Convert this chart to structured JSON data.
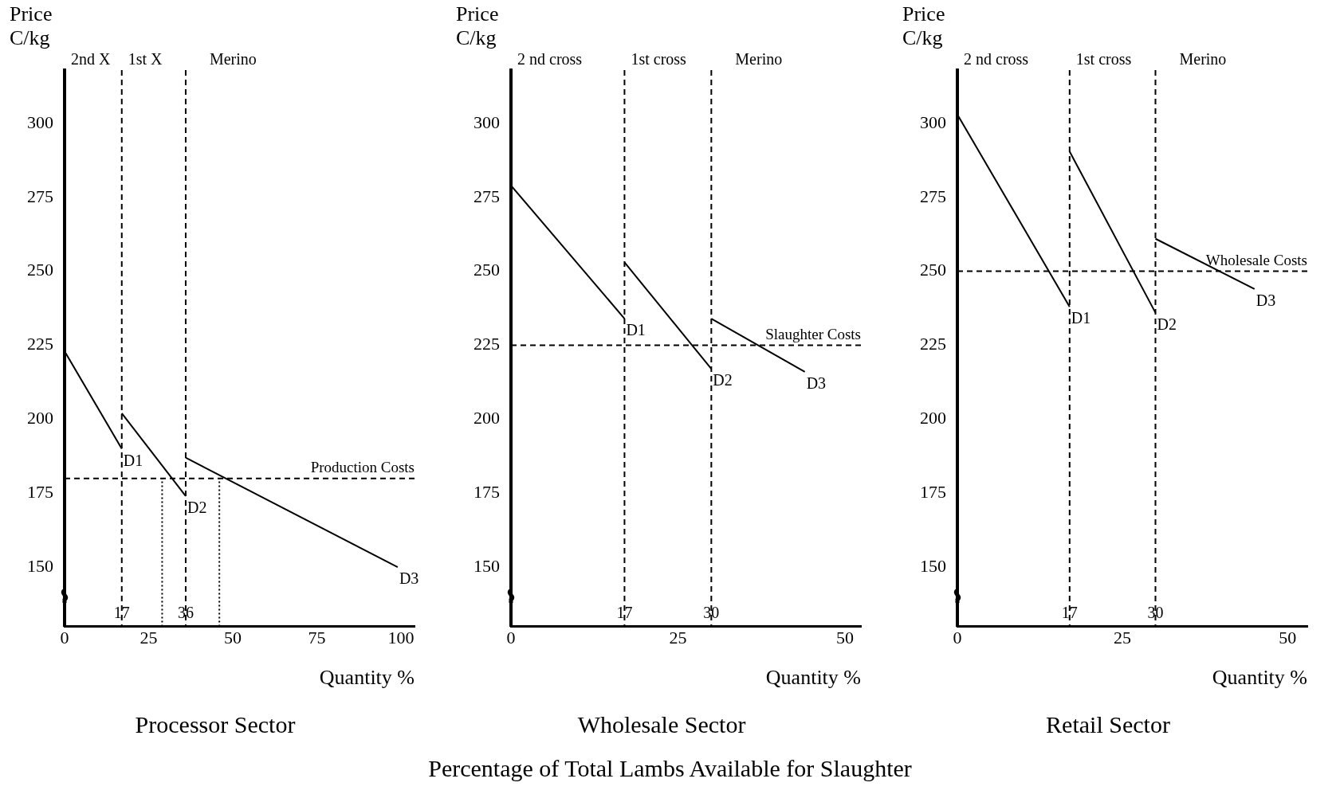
{
  "chart_data": [
    {
      "type": "line",
      "title": "Processor Sector",
      "xlabel": "Quantity %",
      "ylabel": "Price C/kg",
      "xlim": [
        0,
        104
      ],
      "ylim": [
        130,
        318
      ],
      "xticks": [
        0,
        25,
        50,
        75,
        100
      ],
      "yticks": [
        150,
        175,
        200,
        225,
        250,
        275,
        300
      ],
      "series": [
        {
          "color": "#000000",
          "x": [
            0,
            17
          ],
          "values": [
            223,
            190
          ]
        },
        {
          "color": "#000000",
          "x": [
            17,
            36
          ],
          "values": [
            202,
            174
          ]
        },
        {
          "color": "#000000",
          "x": [
            36,
            99
          ],
          "values": [
            187,
            150
          ]
        },
        {
          "color": "#000000",
          "x": [
            29,
            29
          ],
          "values": [
            130,
            180
          ],
          "line_style": "dotted"
        },
        {
          "color": "#000000",
          "x": [
            46,
            46
          ],
          "values": [
            130,
            180
          ],
          "line_style": "dotted"
        }
      ],
      "ref_lines": [
        {
          "axis": "x",
          "value": 17,
          "label": "17",
          "line_style": "dashed"
        },
        {
          "axis": "x",
          "value": 36,
          "label": "36",
          "line_style": "dashed"
        },
        {
          "axis": "y",
          "value": 180,
          "label": "Production Costs",
          "line_style": "dashed"
        }
      ],
      "annotations": [
        "2nd X",
        "1st X",
        "Merino",
        {
          "text": "D1",
          "x": 17,
          "y": 190
        },
        {
          "text": "D2",
          "x": 36,
          "y": 174
        },
        {
          "text": "D3",
          "x": 99,
          "y": 150
        }
      ]
    },
    {
      "type": "line",
      "title": "Wholesale Sector",
      "xlabel": "Quantity %",
      "ylabel": "Price C/kg",
      "xlim": [
        0,
        52.4
      ],
      "ylim": [
        130,
        318
      ],
      "xticks": [
        0,
        25,
        50
      ],
      "yticks": [
        150,
        175,
        200,
        225,
        250,
        275,
        300
      ],
      "series": [
        {
          "color": "#000000",
          "x": [
            0,
            17
          ],
          "values": [
            279,
            234
          ]
        },
        {
          "color": "#000000",
          "x": [
            17,
            30
          ],
          "values": [
            253,
            217
          ]
        },
        {
          "color": "#000000",
          "x": [
            30,
            44
          ],
          "values": [
            234,
            216
          ]
        }
      ],
      "ref_lines": [
        {
          "axis": "x",
          "value": 17,
          "label": "17",
          "line_style": "dashed"
        },
        {
          "axis": "x",
          "value": 30,
          "label": "30",
          "line_style": "dashed"
        },
        {
          "axis": "y",
          "value": 225,
          "label": "Slaughter Costs",
          "line_style": "dashed"
        }
      ],
      "annotations": [
        "2 nd cross",
        "1st cross",
        "Merino",
        {
          "text": "D1",
          "x": 17,
          "y": 234
        },
        {
          "text": "D2",
          "x": 30,
          "y": 217
        },
        {
          "text": "D3",
          "x": 44,
          "y": 216
        },
        "Percentage of Total Lambs Available for Slaughter"
      ]
    },
    {
      "type": "line",
      "title": "Retail Sector",
      "xlabel": "Quantity %",
      "ylabel": "Price C/kg",
      "xlim": [
        0,
        53
      ],
      "ylim": [
        130,
        318
      ],
      "xticks": [
        0,
        25,
        50
      ],
      "yticks": [
        150,
        175,
        200,
        225,
        250,
        275,
        300
      ],
      "series": [
        {
          "color": "#000000",
          "x": [
            0,
            17
          ],
          "values": [
            303,
            238
          ]
        },
        {
          "color": "#000000",
          "x": [
            17,
            30
          ],
          "values": [
            290.5,
            236
          ]
        },
        {
          "color": "#000000",
          "x": [
            30,
            45
          ],
          "values": [
            261,
            244
          ]
        }
      ],
      "ref_lines": [
        {
          "axis": "x",
          "value": 17,
          "label": "17",
          "line_style": "dashed"
        },
        {
          "axis": "x",
          "value": 30,
          "label": "30",
          "line_style": "dashed"
        },
        {
          "axis": "y",
          "value": 250,
          "label": "Wholesale Costs",
          "line_style": "dashed"
        }
      ],
      "annotations": [
        "2 nd cross",
        "1st cross",
        "Merino",
        {
          "text": "D1",
          "x": 17,
          "y": 238
        },
        {
          "text": "D2",
          "x": 30,
          "y": 236
        },
        {
          "text": "D3",
          "x": 45,
          "y": 244
        }
      ]
    }
  ]
}
